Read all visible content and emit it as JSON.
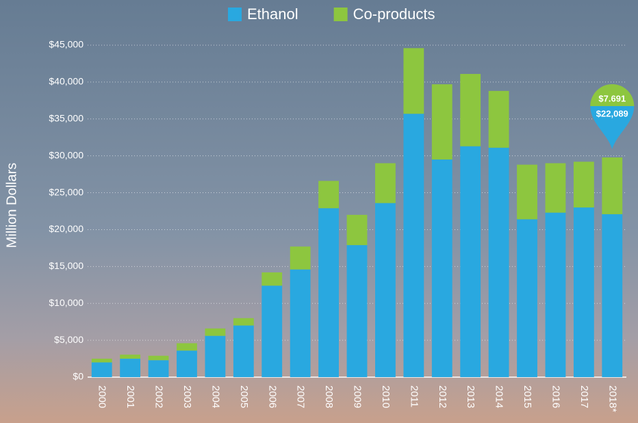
{
  "chart_data": {
    "type": "stacked_bar",
    "y_label": "Million Dollars",
    "categories": [
      "2000",
      "2001",
      "2002",
      "2003",
      "2004",
      "2005",
      "2006",
      "2007",
      "2008",
      "2009",
      "2010",
      "2011",
      "2012",
      "2013",
      "2014",
      "2015",
      "2016",
      "2017",
      "2018*"
    ],
    "series": [
      {
        "name": "Ethanol",
        "color": "#29a8e0",
        "values": [
          2000,
          2500,
          2300,
          3600,
          5600,
          7000,
          12400,
          14600,
          22900,
          17900,
          23600,
          35700,
          29500,
          31300,
          31100,
          21400,
          22300,
          23000,
          22089
        ],
        "value_labels": [
          null,
          null,
          null,
          null,
          null,
          null,
          null,
          null,
          null,
          null,
          null,
          null,
          null,
          null,
          null,
          null,
          null,
          null,
          "$22,089"
        ]
      },
      {
        "name": "Co-products",
        "color": "#8dc63f",
        "values": [
          500,
          550,
          600,
          1000,
          1000,
          1000,
          1800,
          3100,
          3700,
          4100,
          5400,
          8900,
          10200,
          9800,
          7700,
          7400,
          6700,
          6200,
          7691
        ],
        "value_labels": [
          null,
          null,
          null,
          null,
          null,
          null,
          null,
          null,
          null,
          null,
          null,
          null,
          null,
          null,
          null,
          null,
          null,
          null,
          "$7.691"
        ]
      }
    ],
    "ylim": [
      0,
      45000
    ],
    "yticks": [
      {
        "value": 0,
        "label": "$0"
      },
      {
        "value": 5000,
        "label": "$5,000"
      },
      {
        "value": 10000,
        "label": "$10,000"
      },
      {
        "value": 15000,
        "label": "$15,000"
      },
      {
        "value": 20000,
        "label": "$20,000"
      },
      {
        "value": 25000,
        "label": "$25,000"
      },
      {
        "value": 30000,
        "label": "$30,000"
      },
      {
        "value": 35000,
        "label": "$35,000"
      },
      {
        "value": 40000,
        "label": "$40,000"
      },
      {
        "value": 45000,
        "label": "$45,000"
      }
    ],
    "grid": true,
    "legend": "top"
  }
}
